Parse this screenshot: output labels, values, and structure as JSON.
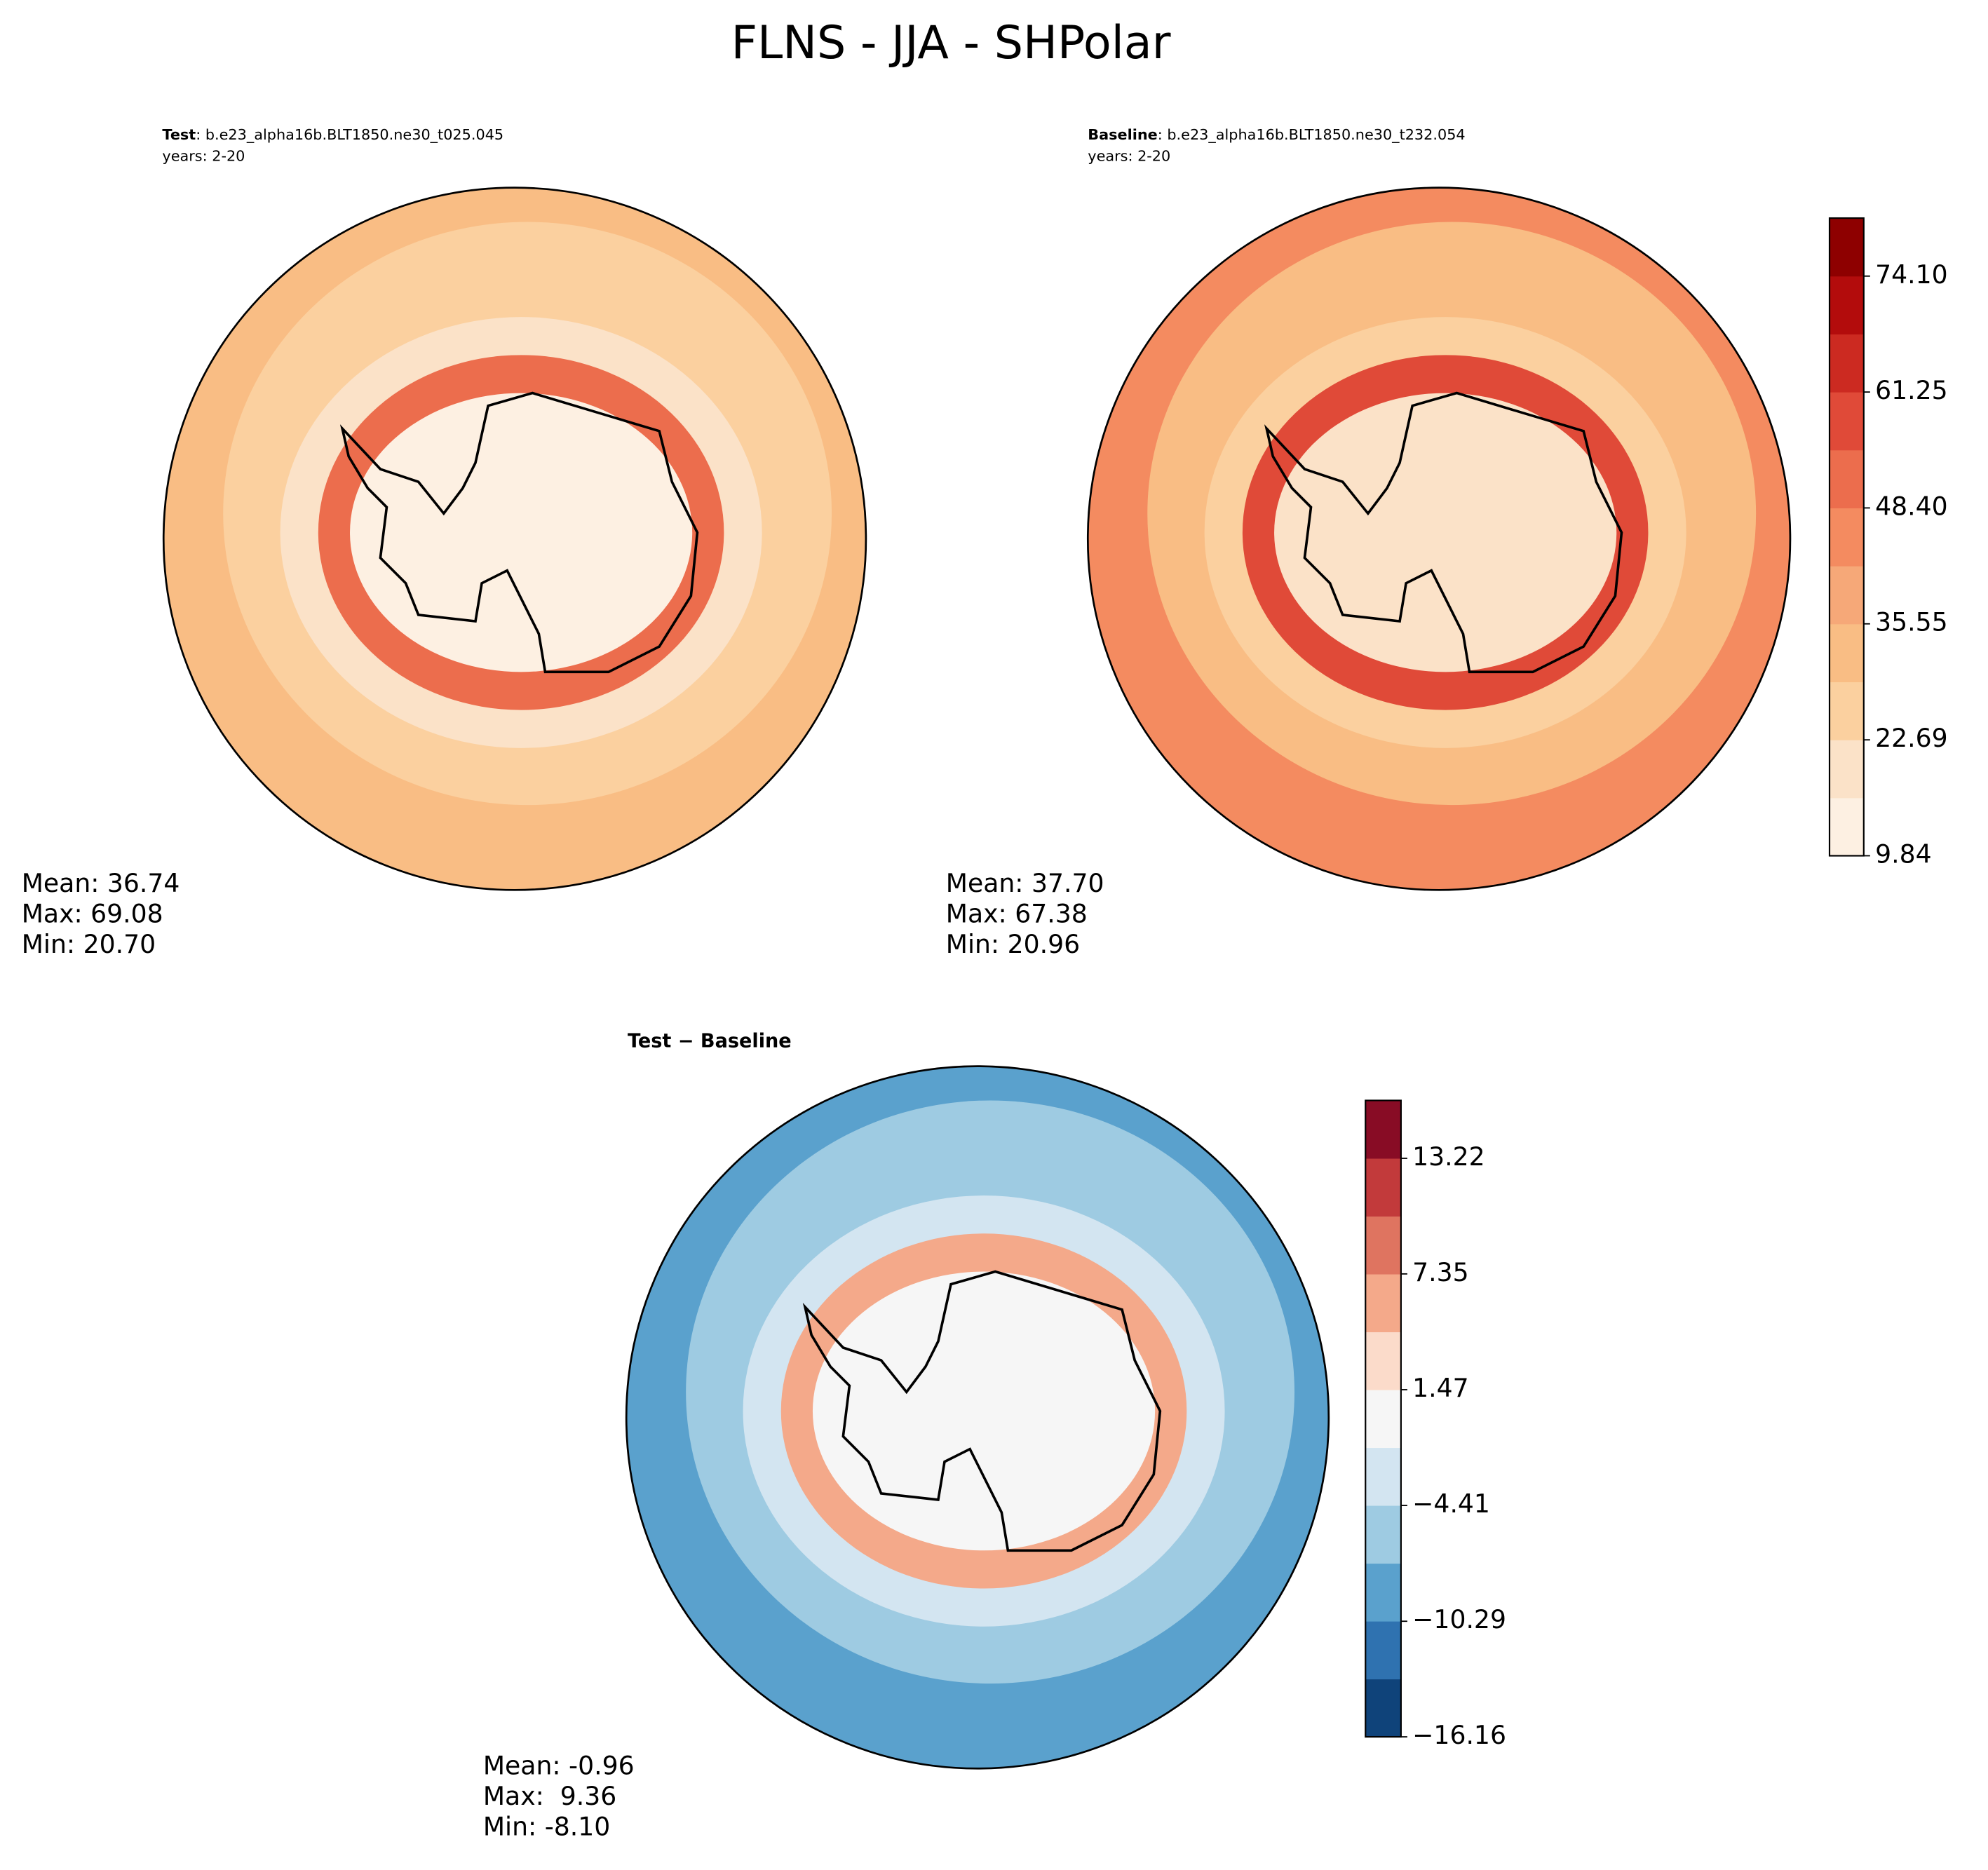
{
  "title": "FLNS - JJA - SHPolar",
  "chart_data": [
    {
      "type": "polar-map",
      "label": "Test",
      "case": ": b.e23_alpha16b.BLT1850.ne30_t025.045",
      "years": "years: 2-20",
      "stats": [
        "Mean: 36.74",
        "Max: 69.08",
        "Min: 20.70"
      ]
    },
    {
      "type": "polar-map",
      "label": "Baseline",
      "case": ": b.e23_alpha16b.BLT1850.ne30_t232.054",
      "years": "years: 2-20",
      "stats": [
        "Mean: 37.70",
        "Max: 67.38",
        "Min: 20.96"
      ],
      "colorbar": {
        "ylim": [
          9.84,
          80.53
        ],
        "yticks": [
          9.84,
          22.69,
          35.55,
          {
            "value": 48.4,
            "label": "48.40"
          },
          61.25,
          {
            "value": 74.1,
            "label": "74.10"
          }
        ],
        "colors": [
          "#fdf0e2",
          "#fbe2c8",
          "#fbd09f",
          "#f9bd84",
          "#f6a878",
          "#f48b60",
          "#ec6d4d",
          "#e04a38",
          "#cc2a21",
          "#b30c0c",
          "#8e0000"
        ]
      }
    },
    {
      "type": "polar-map",
      "label": "Test − Baseline",
      "stats": [
        "Mean: -0.96",
        "Max:  9.36",
        "Min: -8.10"
      ],
      "colorbar": {
        "ylim": [
          -16.16,
          16.16
        ],
        "yticks": [
          {
            "value": -16.16,
            "label": "−16.16"
          },
          {
            "value": -10.29,
            "label": "−10.29"
          },
          {
            "value": -4.41,
            "label": "−4.41"
          },
          1.47,
          7.35,
          13.22
        ],
        "colors": [
          "#0f437a",
          "#2f72b0",
          "#5aa1cd",
          "#9ecbe2",
          "#d3e5f1",
          "#f6f6f6",
          "#fbdbca",
          "#f4a98a",
          "#df7460",
          "#c23a3b",
          "#880c25"
        ]
      }
    }
  ]
}
